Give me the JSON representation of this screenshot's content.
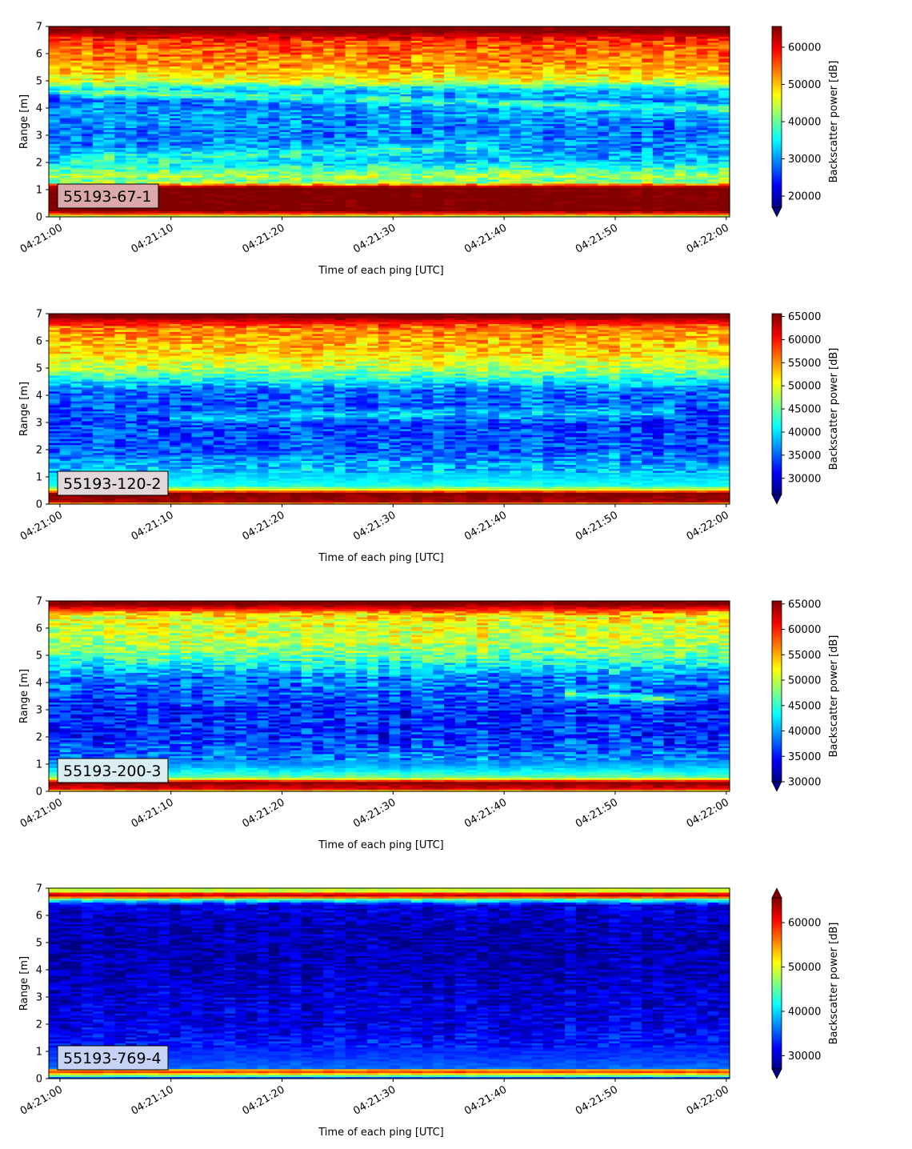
{
  "chart_data": [
    {
      "type": "heatmap",
      "instrument_label": "55193-67-1",
      "instrument_label_bg": "#dba9a9",
      "xlabel": "Time of each ping [UTC]",
      "ylabel": "Range [m]",
      "x_ticks": [
        "04:21:00",
        "04:21:10",
        "04:21:20",
        "04:21:30",
        "04:21:40",
        "04:21:50",
        "04:22:00"
      ],
      "x_range_seconds": [
        -1,
        60.3
      ],
      "ylim": [
        0,
        7
      ],
      "y_ticks": [
        "0",
        "1",
        "2",
        "3",
        "4",
        "5",
        "6",
        "7"
      ],
      "colorbar": {
        "label": "Backscatter power [dB]",
        "vmin": 17000,
        "vmax": 65600,
        "ticks": [
          "20000",
          "30000",
          "40000",
          "50000",
          "60000"
        ],
        "extend": "min",
        "colormap": "jet"
      },
      "profile": [
        [
          0,
          40000
        ],
        [
          0.15,
          60000
        ],
        [
          0.25,
          66000
        ],
        [
          1.1,
          66000
        ],
        [
          1.3,
          40000
        ],
        [
          1.5,
          44000
        ],
        [
          1.8,
          38000
        ],
        [
          2.1,
          32000
        ],
        [
          2.6,
          30000
        ],
        [
          3.2,
          29000
        ],
        [
          3.8,
          31000
        ],
        [
          4.3,
          28000
        ],
        [
          4.7,
          34000
        ],
        [
          5.0,
          46000
        ],
        [
          5.5,
          52000
        ],
        [
          6.0,
          54000
        ],
        [
          6.4,
          56000
        ],
        [
          6.7,
          62000
        ],
        [
          6.85,
          66000
        ],
        [
          7.0,
          66000
        ]
      ],
      "features": [
        {
          "t0": 0,
          "t1": 60,
          "r0": 4.6,
          "r1": 4.0,
          "amp": 9000,
          "w": 0.15
        },
        {
          "t0": 0,
          "t1": 40,
          "r0": 2.1,
          "r1": 2.6,
          "amp": 6000,
          "w": 0.2
        }
      ],
      "noise": 5500,
      "noise_scale": 1.0,
      "seed": 11
    },
    {
      "type": "heatmap",
      "instrument_label": "55193-120-2",
      "instrument_label_bg": "#e1d8da",
      "xlabel": "Time of each ping [UTC]",
      "ylabel": "Range [m]",
      "x_ticks": [
        "04:21:00",
        "04:21:10",
        "04:21:20",
        "04:21:30",
        "04:21:40",
        "04:21:50",
        "04:22:00"
      ],
      "x_range_seconds": [
        -1,
        60.3
      ],
      "ylim": [
        0,
        7
      ],
      "y_ticks": [
        "0",
        "1",
        "2",
        "3",
        "4",
        "5",
        "6",
        "7"
      ],
      "colorbar": {
        "label": "Backscatter power [dB]",
        "vmin": 26500,
        "vmax": 65600,
        "ticks": [
          "30000",
          "35000",
          "40000",
          "45000",
          "50000",
          "55000",
          "60000",
          "65000"
        ],
        "extend": "min",
        "colormap": "jet"
      },
      "profile": [
        [
          0,
          50000
        ],
        [
          0.1,
          64000
        ],
        [
          0.4,
          66000
        ],
        [
          0.55,
          50000
        ],
        [
          0.7,
          42000
        ],
        [
          1.0,
          40000
        ],
        [
          1.5,
          38000
        ],
        [
          2.0,
          35000
        ],
        [
          3.0,
          34000
        ],
        [
          3.6,
          35000
        ],
        [
          4.2,
          36000
        ],
        [
          4.6,
          42000
        ],
        [
          5.0,
          48000
        ],
        [
          5.5,
          52000
        ],
        [
          6.0,
          54000
        ],
        [
          6.5,
          56000
        ],
        [
          6.75,
          62000
        ],
        [
          6.9,
          66000
        ],
        [
          7.0,
          66000
        ]
      ],
      "features": [
        {
          "t0": 10,
          "t1": 55,
          "r0": 3.2,
          "r1": 3.4,
          "amp": 5000,
          "w": 0.2
        }
      ],
      "noise": 4500,
      "noise_scale": 1.0,
      "seed": 23
    },
    {
      "type": "heatmap",
      "instrument_label": "55193-200-3",
      "instrument_label_bg": "#d8eef2",
      "xlabel": "Time of each ping [UTC]",
      "ylabel": "Range [m]",
      "x_ticks": [
        "04:21:00",
        "04:21:10",
        "04:21:20",
        "04:21:30",
        "04:21:40",
        "04:21:50",
        "04:22:00"
      ],
      "x_range_seconds": [
        -1,
        60.3
      ],
      "ylim": [
        0,
        7
      ],
      "y_ticks": [
        "0",
        "1",
        "2",
        "3",
        "4",
        "5",
        "6",
        "7"
      ],
      "colorbar": {
        "label": "Backscatter power [dB]",
        "vmin": 30000,
        "vmax": 65600,
        "ticks": [
          "30000",
          "35000",
          "40000",
          "45000",
          "50000",
          "55000",
          "60000",
          "65000"
        ],
        "extend": "min",
        "colormap": "jet"
      },
      "profile": [
        [
          0,
          50000
        ],
        [
          0.1,
          62000
        ],
        [
          0.35,
          66000
        ],
        [
          0.5,
          48000
        ],
        [
          0.7,
          44000
        ],
        [
          1.0,
          40000
        ],
        [
          1.5,
          38000
        ],
        [
          2.0,
          36000
        ],
        [
          3.0,
          36000
        ],
        [
          3.6,
          38000
        ],
        [
          4.2,
          39000
        ],
        [
          4.6,
          43000
        ],
        [
          5.0,
          47000
        ],
        [
          5.5,
          50000
        ],
        [
          6.0,
          51000
        ],
        [
          6.5,
          53000
        ],
        [
          6.75,
          62000
        ],
        [
          6.9,
          66000
        ],
        [
          7.0,
          66000
        ]
      ],
      "features": [
        {
          "t0": 45,
          "t1": 55,
          "r0": 3.6,
          "r1": 3.4,
          "amp": 8000,
          "w": 0.12
        }
      ],
      "noise": 4500,
      "noise_scale": 1.0,
      "seed": 37
    },
    {
      "type": "heatmap",
      "instrument_label": "55193-769-4",
      "instrument_label_bg": "#c6d2f6",
      "xlabel": "Time of each ping [UTC]",
      "ylabel": "Range [m]",
      "x_ticks": [
        "04:21:00",
        "04:21:10",
        "04:21:20",
        "04:21:30",
        "04:21:40",
        "04:21:50",
        "04:22:00"
      ],
      "x_range_seconds": [
        -1,
        60.3
      ],
      "ylim": [
        0,
        7
      ],
      "y_ticks": [
        "0",
        "1",
        "2",
        "3",
        "4",
        "5",
        "6",
        "7"
      ],
      "colorbar": {
        "label": "Backscatter power [dB]",
        "vmin": 27000,
        "vmax": 65600,
        "ticks": [
          "30000",
          "40000",
          "50000",
          "60000"
        ],
        "extend": "both",
        "colormap": "jet"
      },
      "profile": [
        [
          0,
          30000
        ],
        [
          0.15,
          50000
        ],
        [
          0.3,
          62000
        ],
        [
          0.4,
          36000
        ],
        [
          0.8,
          34000
        ],
        [
          1.2,
          33000
        ],
        [
          2.0,
          31000
        ],
        [
          3.0,
          30500
        ],
        [
          4.0,
          29500
        ],
        [
          5.0,
          29000
        ],
        [
          6.0,
          30000
        ],
        [
          6.4,
          31000
        ],
        [
          6.6,
          45000
        ],
        [
          6.72,
          64000
        ],
        [
          6.82,
          60000
        ],
        [
          6.9,
          48000
        ],
        [
          7.0,
          50000
        ]
      ],
      "features": [],
      "noise": 3500,
      "noise_scale": 1.0,
      "seed": 53
    }
  ]
}
